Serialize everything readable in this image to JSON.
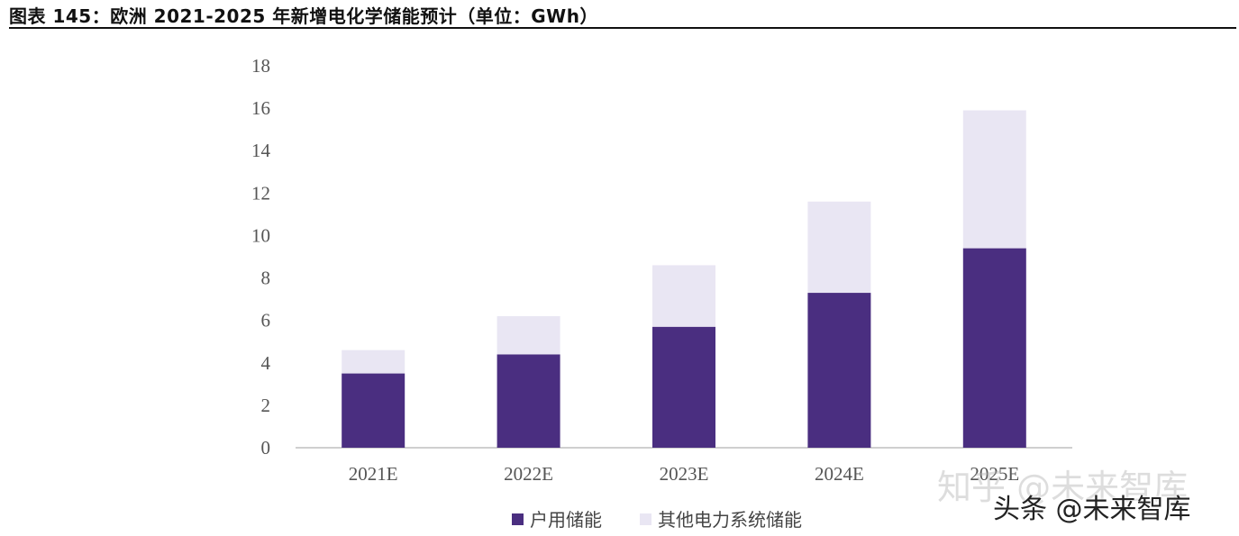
{
  "header": {
    "title": "图表 145：欧洲 2021-2025 年新增电化学储能预计（单位：GWh）"
  },
  "chart_data": {
    "type": "bar",
    "stacked": true,
    "categories": [
      "2021E",
      "2022E",
      "2023E",
      "2024E",
      "2025E"
    ],
    "series": [
      {
        "name": "户用储能",
        "color": "#4a2e80",
        "values": [
          3.5,
          4.4,
          5.7,
          7.3,
          9.4
        ]
      },
      {
        "name": "其他电力系统储能",
        "color": "#e9e6f3",
        "values": [
          1.1,
          1.8,
          2.9,
          4.3,
          6.5
        ]
      }
    ],
    "ylim": [
      0,
      18
    ],
    "yticks": [
      0,
      2,
      4,
      6,
      8,
      10,
      12,
      14,
      16,
      18
    ],
    "grid": false,
    "legend": "bottom"
  },
  "watermarks": {
    "faded": "知乎 @未来智库",
    "bold": "头条 @未来智库"
  }
}
